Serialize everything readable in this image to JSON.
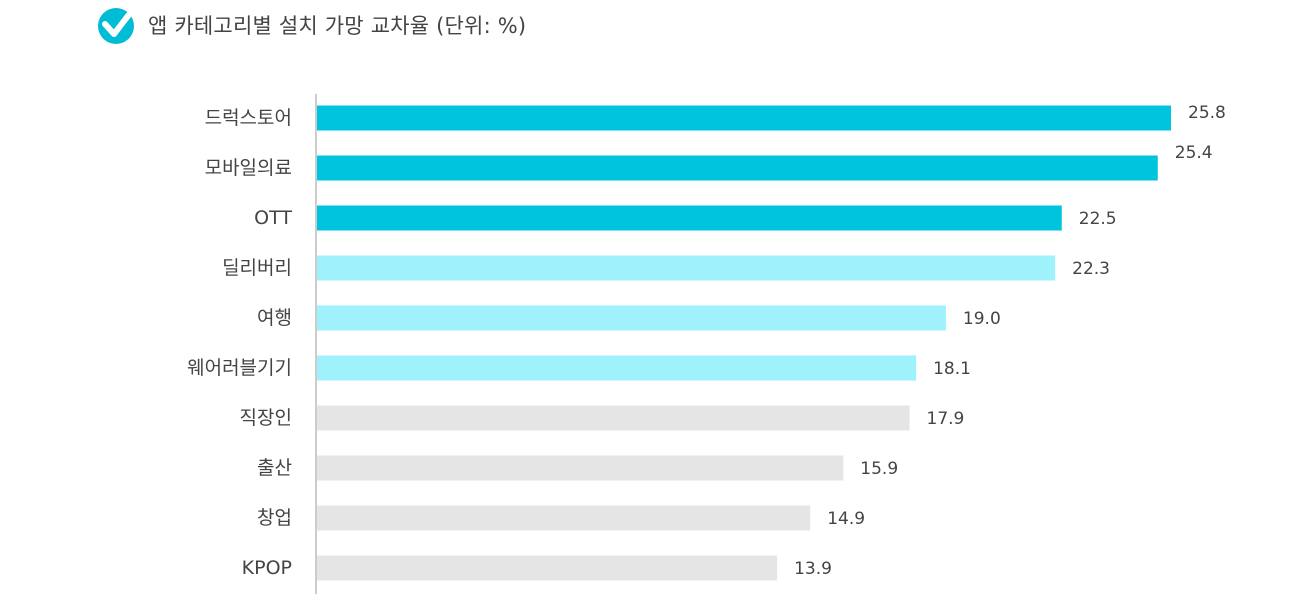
{
  "header": {
    "title": "앱 카테고리별 설치 가망 교차율 (단위: %)",
    "icon": "checkmark-badge-icon"
  },
  "chart_data": {
    "type": "bar",
    "orientation": "horizontal",
    "title": "앱 카테고리별 설치 가망 교차율 (단위: %)",
    "categories": [
      "드럭스토어",
      "모바일의료",
      "OTT",
      "딜리버리",
      "여행",
      "웨어러블기기",
      "직장인",
      "출산",
      "창업",
      "KPOP"
    ],
    "values": [
      25.8,
      25.4,
      22.5,
      22.3,
      19.0,
      18.1,
      17.9,
      15.9,
      14.9,
      13.9
    ],
    "value_labels": [
      "25.8",
      "25.4",
      "22.5",
      "22.3",
      "19.0",
      "18.1",
      "17.9",
      "15.9",
      "14.9",
      "13.9"
    ],
    "bar_colors": [
      "#00c4de",
      "#00c4de",
      "#00c4de",
      "#9ff2fb",
      "#9ff2fb",
      "#9ff2fb",
      "#e5e5e5",
      "#e5e5e5",
      "#e5e5e5",
      "#e5e5e5"
    ],
    "xlim": [
      0,
      25.8
    ],
    "grid": false,
    "axis_color": "#bbbbbb"
  },
  "colors": {
    "accent": "#00bcd4",
    "text": "#444444"
  }
}
